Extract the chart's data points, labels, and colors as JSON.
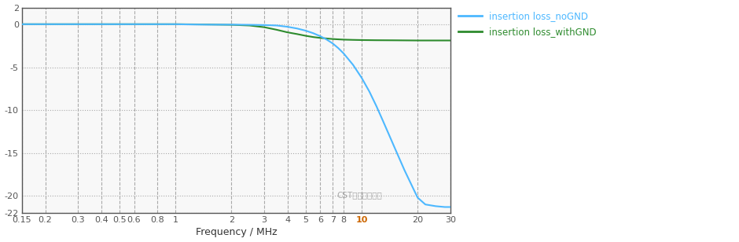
{
  "title": "",
  "xlabel": "Frequency / MHz",
  "ylabel": "",
  "xlim": [
    0.15,
    30
  ],
  "ylim": [
    -22,
    2
  ],
  "yticks": [
    2,
    0,
    -5,
    -10,
    -15,
    -20,
    -22
  ],
  "xticks_major": [
    0.15,
    0.2,
    0.3,
    0.4,
    0.5,
    0.6,
    0.8,
    1,
    2,
    3,
    4,
    5,
    6,
    7,
    8,
    10,
    20,
    30
  ],
  "xtick_labels": [
    "0.15",
    "0.2",
    "0.3",
    "0.4",
    "0.5",
    "0.6",
    "0.8",
    "1",
    "2",
    "3",
    "4",
    "5",
    "6",
    "7",
    "8",
    "10",
    "20",
    "30"
  ],
  "bg_color": "#ffffff",
  "plot_bg_color": "#f8f8f8",
  "line1_color": "#4db8ff",
  "line2_color": "#2e8b2e",
  "line1_label": "insertion loss_noGND",
  "line2_label": "insertion loss_withGND",
  "legend_text_color1": "#4db8ff",
  "legend_text_color2": "#2e8b2e",
  "watermark": "CST仿真专家之路",
  "noGND_freq": [
    0.15,
    0.2,
    0.25,
    0.3,
    0.35,
    0.4,
    0.45,
    0.5,
    0.6,
    0.7,
    0.8,
    1.0,
    1.2,
    1.5,
    2.0,
    2.5,
    3.0,
    3.5,
    4.0,
    4.5,
    5.0,
    5.5,
    6.0,
    6.5,
    7.0,
    7.5,
    8.0,
    9.0,
    10.0,
    11.0,
    12.0,
    13.0,
    14.0,
    15.0,
    17.0,
    19.0,
    20.0,
    22.0,
    25.0,
    28.0,
    30.0
  ],
  "noGND_vals": [
    0.05,
    0.05,
    0.05,
    0.05,
    0.05,
    0.05,
    0.05,
    0.05,
    0.05,
    0.05,
    0.05,
    0.05,
    0.02,
    0.0,
    0.0,
    -0.02,
    -0.05,
    -0.1,
    -0.25,
    -0.45,
    -0.7,
    -1.0,
    -1.35,
    -1.75,
    -2.2,
    -2.75,
    -3.35,
    -4.7,
    -6.2,
    -7.8,
    -9.5,
    -11.2,
    -12.8,
    -14.3,
    -17.0,
    -19.2,
    -20.2,
    -21.0,
    -21.2,
    -21.3,
    -21.3
  ],
  "withGND_freq": [
    0.15,
    0.2,
    0.3,
    0.4,
    0.5,
    0.6,
    0.8,
    1.0,
    1.5,
    2.0,
    2.5,
    3.0,
    3.5,
    4.0,
    4.5,
    5.0,
    5.5,
    6.0,
    6.5,
    7.0,
    8.0,
    9.0,
    10.0,
    12.0,
    15.0,
    20.0,
    25.0,
    30.0
  ],
  "withGND_vals": [
    0.05,
    0.05,
    0.05,
    0.05,
    0.05,
    0.05,
    0.05,
    0.05,
    0.02,
    -0.02,
    -0.1,
    -0.3,
    -0.6,
    -0.9,
    -1.1,
    -1.3,
    -1.45,
    -1.55,
    -1.62,
    -1.68,
    -1.75,
    -1.78,
    -1.8,
    -1.82,
    -1.83,
    -1.85,
    -1.85,
    -1.85
  ]
}
